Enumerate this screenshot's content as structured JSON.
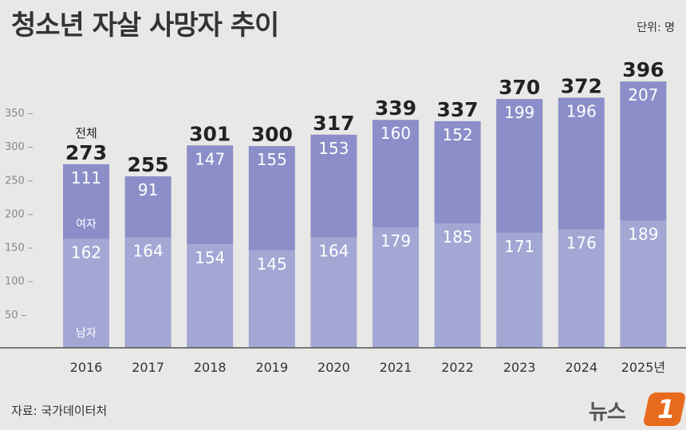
{
  "title": "청소년 자살 사망자 추이",
  "unit": "단위: 명",
  "source": "자료: 국가데이터처",
  "logo": {
    "text": "뉴스",
    "mark": "1"
  },
  "chart_data": {
    "type": "bar",
    "stacked": true,
    "categories": [
      "2016",
      "2017",
      "2018",
      "2019",
      "2020",
      "2021",
      "2022",
      "2023",
      "2024",
      "2025년"
    ],
    "series": [
      {
        "name": "남자",
        "values": [
          162,
          164,
          154,
          145,
          164,
          179,
          185,
          171,
          176,
          189
        ],
        "color": "#a3a7d4"
      },
      {
        "name": "여자",
        "values": [
          111,
          91,
          147,
          155,
          153,
          160,
          152,
          199,
          196,
          207
        ],
        "color": "#8b8ec8"
      }
    ],
    "totals": [
      273,
      255,
      301,
      300,
      317,
      339,
      337,
      370,
      372,
      396
    ],
    "total_label": "전체",
    "yticks": [
      50,
      100,
      150,
      200,
      250,
      300,
      350
    ],
    "ylim": [
      0,
      400
    ],
    "grid": false
  }
}
